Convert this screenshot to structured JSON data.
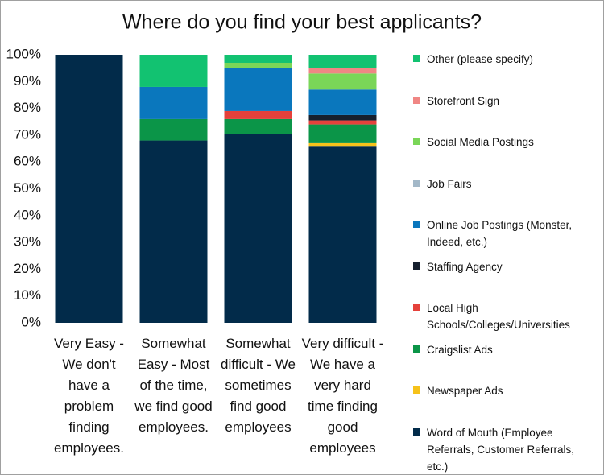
{
  "chart_data": {
    "type": "stacked_bar",
    "title": "Where do you find your best applicants?",
    "categories": [
      "Very Easy - We don't have a problem finding employees.",
      "Somewhat Easy - Most of the time, we find good employees.",
      "Somewhat difficult - We sometimes find good employees",
      "Very difficult - We have a very hard time finding good employees"
    ],
    "series": [
      {
        "name": "Word of Mouth (Employee Referrals, Customer Referrals, etc.)",
        "color": "#022b4a",
        "values": [
          100,
          68,
          70.5,
          66
        ]
      },
      {
        "name": "Newspaper Ads",
        "color": "#f6c21a",
        "values": [
          0,
          0,
          0,
          1
        ]
      },
      {
        "name": "Craigslist Ads",
        "color": "#0b9548",
        "values": [
          0,
          8,
          5.5,
          7
        ]
      },
      {
        "name": "Local High Schools/Colleges/Universities",
        "color": "#e5413b",
        "values": [
          0,
          0,
          3,
          1.5
        ]
      },
      {
        "name": "Staffing Agency",
        "color": "#16202e",
        "values": [
          0,
          0,
          0,
          2
        ]
      },
      {
        "name": "Online Job Postings (Monster, Indeed, etc.)",
        "color": "#0a77bd",
        "values": [
          0,
          12,
          16,
          9.5
        ]
      },
      {
        "name": "Job Fairs",
        "color": "#a3b8c8",
        "values": [
          0,
          0,
          0,
          0
        ]
      },
      {
        "name": "Social Media Postings",
        "color": "#7ad658",
        "values": [
          0,
          0,
          2,
          6
        ]
      },
      {
        "name": "Storefront Sign",
        "color": "#f08684",
        "values": [
          0,
          0,
          0,
          2
        ]
      },
      {
        "name": "Other (please specify)",
        "color": "#12c271",
        "values": [
          0,
          12,
          3,
          5
        ]
      }
    ],
    "ylim": [
      0,
      100
    ],
    "yticks": [
      {
        "value": 0,
        "label": "0%"
      },
      {
        "value": 10,
        "label": "10%"
      },
      {
        "value": 20,
        "label": "20%"
      },
      {
        "value": 30,
        "label": "30%"
      },
      {
        "value": 40,
        "label": "40%"
      },
      {
        "value": 50,
        "label": "50%"
      },
      {
        "value": 60,
        "label": "60%"
      },
      {
        "value": 70,
        "label": "70%"
      },
      {
        "value": 80,
        "label": "80%"
      },
      {
        "value": 90,
        "label": "90%"
      },
      {
        "value": 100,
        "label": "100%"
      }
    ],
    "grid": false,
    "legend": "right"
  }
}
